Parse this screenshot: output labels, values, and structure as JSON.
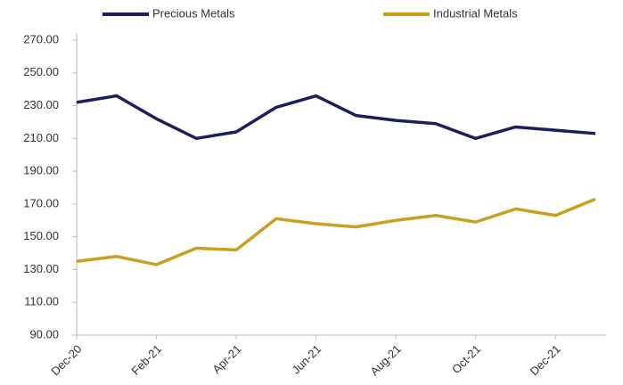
{
  "chart_data": {
    "type": "line",
    "categories": [
      "Dec-20",
      null,
      "Feb-21",
      null,
      "Apr-21",
      null,
      "Jun-21",
      null,
      "Aug-21",
      null,
      "Oct-21",
      null,
      "Dec-21",
      null
    ],
    "series": [
      {
        "name": "Precious Metals",
        "color": "#1c1f5e",
        "values": [
          232,
          236,
          222,
          210,
          214,
          229,
          236,
          224,
          221,
          219,
          210,
          217,
          215,
          213
        ]
      },
      {
        "name": "Industrial Metals",
        "color": "#c9a020",
        "values": [
          135,
          138,
          133,
          143,
          142,
          161,
          158,
          156,
          160,
          163,
          159,
          167,
          163,
          173
        ]
      }
    ],
    "ylim": [
      90,
      270
    ],
    "yticks": [
      {
        "value": 90,
        "label": "90.00"
      },
      {
        "value": 110,
        "label": "110.00"
      },
      {
        "value": 130,
        "label": "130.00"
      },
      {
        "value": 150,
        "label": "150.00"
      },
      {
        "value": 170,
        "label": "170.00"
      },
      {
        "value": 190,
        "label": "190.00"
      },
      {
        "value": 210,
        "label": "210.00"
      },
      {
        "value": 230,
        "label": "230.00"
      },
      {
        "value": 250,
        "label": "250.00"
      },
      {
        "value": 270,
        "label": "270.00"
      }
    ],
    "legend": "top"
  }
}
